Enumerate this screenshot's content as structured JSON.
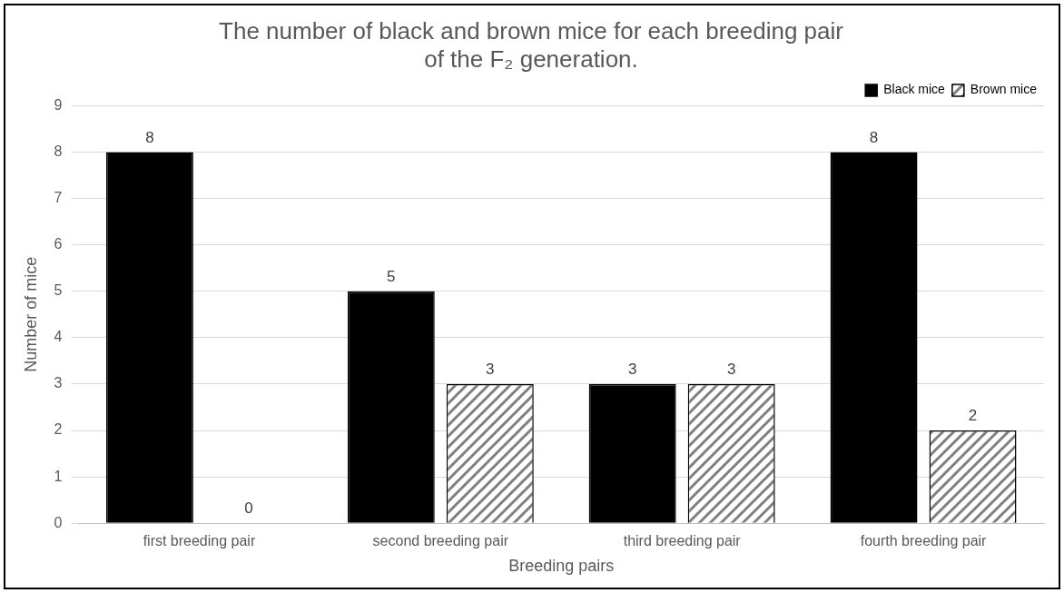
{
  "chart_data": {
    "type": "bar",
    "title": "The number of black and brown mice for each breeding pair of the F₂ generation.",
    "x_label": "Breeding pairs",
    "y_label": "Number of mice",
    "categories": [
      "first breeding pair",
      "second breeding pair",
      "third breeding pair",
      "fourth breeding pair"
    ],
    "series": [
      {
        "name": "Black mice",
        "color": "#000000",
        "values": [
          8,
          5,
          3,
          8
        ]
      },
      {
        "name": "Brown mice",
        "color": "#7f7f7f",
        "values": [
          0,
          3,
          3,
          2
        ]
      }
    ],
    "ylim": [
      0,
      9
    ],
    "yticks": [
      0,
      1,
      2,
      3,
      4,
      5,
      6,
      7,
      8,
      9
    ],
    "grid": true,
    "legend": "upper right",
    "data_labels": true
  }
}
